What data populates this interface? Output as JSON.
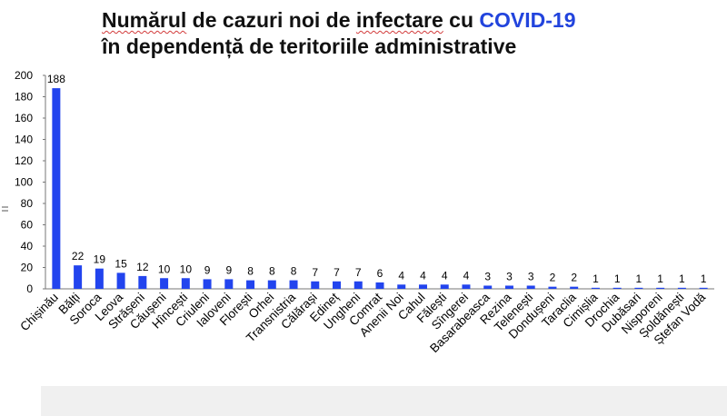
{
  "title": {
    "part1": "Numărul",
    "part2": " de cazuri noi de ",
    "part3": "infectare",
    "part4": " cu ",
    "accent": "COVID-19",
    "line2": "în dependență de teritoriile administrative"
  },
  "colors": {
    "bar": "#2244ee",
    "title_accent": "#2244dd",
    "axis": "#777777"
  },
  "chart_data": {
    "type": "bar",
    "title": "Numărul de cazuri noi de infectare cu COVID-19 în dependență de teritoriile administrative",
    "xlabel": "",
    "ylabel": "",
    "ylim": [
      0,
      200
    ],
    "yticks": [
      0,
      20,
      40,
      60,
      80,
      100,
      120,
      140,
      160,
      180,
      200
    ],
    "grid": false,
    "categories": [
      "Chișinău",
      "Bălți",
      "Soroca",
      "Leova",
      "Strășeni",
      "Căușeni",
      "Hîncești",
      "Criuleni",
      "Ialoveni",
      "Florești",
      "Orhei",
      "Transnistria",
      "Călărași",
      "Edineț",
      "Ungheni",
      "Comrat",
      "Anenii Noi",
      "Cahul",
      "Fălești",
      "Sîngerei",
      "Basarabeasca",
      "Rezina",
      "Telenești",
      "Dondușeni",
      "Taraclia",
      "Cimișlia",
      "Drochia",
      "Dubăsari",
      "Nisporeni",
      "Șoldănești",
      "Ștefan Vodă"
    ],
    "values": [
      188,
      22,
      19,
      15,
      12,
      10,
      10,
      9,
      9,
      8,
      8,
      8,
      7,
      7,
      7,
      6,
      4,
      4,
      4,
      4,
      3,
      3,
      3,
      2,
      2,
      1,
      1,
      1,
      1,
      1,
      1
    ]
  }
}
